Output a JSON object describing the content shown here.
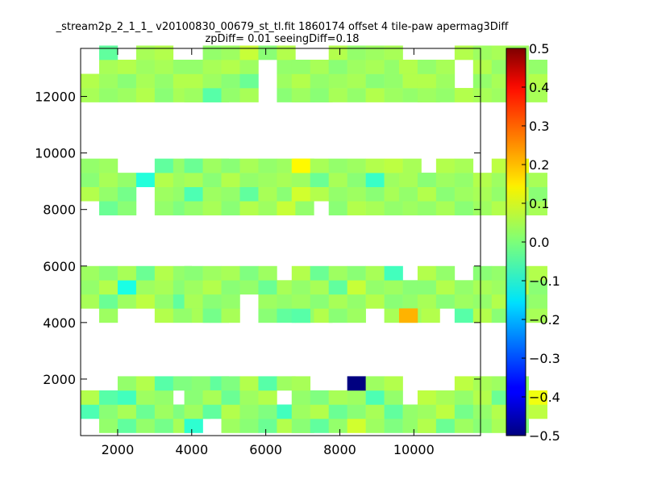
{
  "chart_data": {
    "type": "heatmap",
    "title_line1": "_stream2p_2_1_1_ v20100830_00679_st_tl.fit 1860174 offset 4 tile-paw apermag3Diff",
    "title_line2": "zpDiff= 0.01 seeingDiff=0.18",
    "xlim": [
      1000,
      11800
    ],
    "ylim": [
      0,
      13700
    ],
    "x_ticks": [
      {
        "value": 2000,
        "label": "2000"
      },
      {
        "value": 4000,
        "label": "4000"
      },
      {
        "value": 6000,
        "label": "6000"
      },
      {
        "value": 8000,
        "label": "8000"
      },
      {
        "value": 10000,
        "label": "10000"
      }
    ],
    "y_ticks": [
      {
        "value": 2000,
        "label": "2000"
      },
      {
        "value": 4000,
        "label": "4000"
      },
      {
        "value": 6000,
        "label": "6000"
      },
      {
        "value": 8000,
        "label": "8000"
      },
      {
        "value": 10000,
        "label": "10000"
      },
      {
        "value": 12000,
        "label": "12000"
      }
    ],
    "colorbar": {
      "colormap": "jet",
      "range": [
        -0.5,
        0.5
      ],
      "ticks": [
        {
          "value": 0.5,
          "label": "0.5"
        },
        {
          "value": 0.4,
          "label": "0.4"
        },
        {
          "value": 0.3,
          "label": "0.3"
        },
        {
          "value": 0.2,
          "label": "0.2"
        },
        {
          "value": 0.1,
          "label": "0.1"
        },
        {
          "value": 0.0,
          "label": "0.0"
        },
        {
          "value": -0.1,
          "label": "−0.1"
        },
        {
          "value": -0.2,
          "label": "−0.2"
        },
        {
          "value": -0.3,
          "label": "−0.3"
        },
        {
          "value": -0.4,
          "label": "−0.4"
        },
        {
          "value": -0.5,
          "label": "−0.5"
        }
      ]
    },
    "cell_size": 500,
    "blocks": [
      {
        "x0": 1000,
        "y0": 100,
        "cols": 8,
        "rows": 4,
        "values": [
          [
            0.03,
            0.02,
            -0.03,
            0.02,
            -0.01,
            0.04,
            0.05,
            0.02
          ],
          [
            -0.05,
            0.01,
            0.04,
            -0.02,
            0.03,
            0.0,
            0.02,
            0.06
          ],
          [
            0.05,
            -0.04,
            -0.06,
            0.03,
            0.02,
            -0.03,
            0.04,
            0.01
          ],
          [
            -0.02,
            0.03,
            0.02,
            0.05,
            -0.04,
            0.0,
            0.01,
            -0.03
          ]
        ]
      },
      {
        "x0": 3800,
        "y0": 100,
        "cols": 8,
        "rows": 4,
        "values": [
          [
            -0.08,
            0.02,
            0.03,
            0.01,
            -0.02,
            0.05,
            0.06,
            -0.01
          ],
          [
            0.03,
            -0.03,
            0.05,
            0.02,
            0.0,
            -0.06,
            0.02,
            0.04
          ],
          [
            0.01,
            0.04,
            -0.02,
            0.03,
            0.05,
            0.02,
            -0.03,
            0.01
          ],
          [
            0.02,
            -0.01,
            0.0,
            0.05,
            -0.04,
            0.03,
            0.01,
            0.02
          ]
        ]
      },
      {
        "x0": 6700,
        "y0": 100,
        "cols": 8,
        "rows": 4,
        "values": [
          [
            0.01,
            -0.03,
            0.02,
            0.08,
            0.03,
            0.0,
            0.02,
            -0.02
          ],
          [
            0.03,
            0.05,
            -0.02,
            0.01,
            0.04,
            -0.03,
            0.02,
            0.06
          ],
          [
            0.02,
            0.0,
            0.04,
            0.03,
            -0.05,
            0.02,
            0.01,
            0.03
          ],
          [
            0.04,
            0.02,
            -0.01,
            -0.5,
            0.03,
            0.05,
            -0.02,
            0.07
          ]
        ]
      },
      {
        "x0": 9600,
        "y0": 100,
        "cols": 8,
        "rows": 4,
        "values": [
          [
            0.02,
            0.05,
            -0.02,
            0.03,
            0.01,
            0.04,
            0.0,
            0.03
          ],
          [
            0.05,
            0.03,
            0.06,
            -0.01,
            0.02,
            0.05,
            0.03,
            0.06
          ],
          [
            0.03,
            0.06,
            0.04,
            0.02,
            0.05,
            -0.02,
            0.03,
            0.11
          ],
          [
            0.08,
            0.02,
            0.05,
            0.06,
            0.04,
            0.03,
            0.02,
            -0.04
          ]
        ]
      },
      {
        "x0": 1000,
        "y0": 4000,
        "cols": 8,
        "rows": 4,
        "values": [
          [
            0.07,
            0.03,
            -0.02,
            0.01,
            0.05,
            0.02,
            0.04,
            -0.01
          ],
          [
            0.04,
            -0.02,
            0.03,
            0.06,
            0.02,
            -0.03,
            0.01,
            0.0
          ],
          [
            0.02,
            0.05,
            -0.1,
            0.03,
            0.04,
            0.01,
            0.0,
            0.03
          ],
          [
            0.03,
            0.01,
            0.04,
            -0.02,
            0.05,
            0.02,
            0.03,
            0.01
          ]
        ]
      },
      {
        "x0": 3800,
        "y0": 4000,
        "cols": 8,
        "rows": 4,
        "values": [
          [
            0.02,
            -0.01,
            0.04,
            0.03,
            0.01,
            -0.03,
            0.02,
            0.05
          ],
          [
            0.04,
            0.01,
            0.02,
            -0.08,
            0.03,
            0.02,
            0.04,
            0.01
          ],
          [
            0.03,
            0.05,
            0.01,
            0.02,
            -0.02,
            0.04,
            0.03,
            0.02
          ],
          [
            0.01,
            0.03,
            0.04,
            0.0,
            0.03,
            0.05,
            0.02,
            0.04
          ]
        ]
      },
      {
        "x0": 6700,
        "y0": 4000,
        "cols": 8,
        "rows": 4,
        "values": [
          [
            -0.04,
            0.02,
            0.01,
            0.03,
            0.02,
            0.04,
            0.03,
            0.05
          ],
          [
            0.03,
            0.01,
            0.04,
            0.02,
            0.05,
            0.01,
            0.02,
            0.03
          ],
          [
            0.02,
            0.04,
            -0.03,
            0.07,
            0.02,
            0.03,
            0.01,
            0.04
          ],
          [
            0.05,
            -0.02,
            0.03,
            0.01,
            0.04,
            -0.06,
            0.02,
            0.06
          ]
        ]
      },
      {
        "x0": 9600,
        "y0": 4000,
        "cols": 8,
        "rows": 4,
        "values": [
          [
            0.2,
            0.03,
            0.02,
            -0.04,
            0.05,
            0.01,
            0.03,
            0.04
          ],
          [
            0.02,
            0.04,
            0.01,
            0.03,
            0.02,
            0.05,
            0.0,
            0.02
          ],
          [
            0.04,
            0.01,
            0.05,
            0.02,
            0.04,
            0.03,
            0.06,
            0.01
          ],
          [
            0.03,
            0.05,
            0.02,
            0.04,
            0.01,
            0.02,
            0.03,
            0.05
          ]
        ]
      },
      {
        "x0": 1000,
        "y0": 7800,
        "cols": 8,
        "rows": 4,
        "values": [
          [
            0.03,
            -0.02,
            0.01,
            0.04,
            0.02,
            0.0,
            0.03,
            0.01
          ],
          [
            0.05,
            0.02,
            -0.01,
            0.04,
            0.03,
            0.02,
            0.04,
            -0.02
          ],
          [
            0.01,
            0.04,
            0.02,
            -0.09,
            0.05,
            0.03,
            0.01,
            0.02
          ],
          [
            0.02,
            0.03,
            0.05,
            0.01,
            -0.03,
            0.02,
            0.04,
            0.03
          ]
        ]
      },
      {
        "x0": 3800,
        "y0": 7800,
        "cols": 8,
        "rows": 4,
        "values": [
          [
            0.02,
            0.04,
            0.01,
            0.05,
            0.03,
            0.07,
            0.02,
            0.04
          ],
          [
            -0.05,
            0.03,
            0.02,
            -0.03,
            0.04,
            0.01,
            0.03,
            0.02
          ],
          [
            0.04,
            0.01,
            0.05,
            0.02,
            0.03,
            0.04,
            0.01,
            0.05
          ],
          [
            -0.02,
            0.03,
            0.01,
            0.04,
            0.02,
            0.03,
            0.05,
            0.01
          ]
        ]
      },
      {
        "x0": 6700,
        "y0": 7800,
        "cols": 8,
        "rows": 4,
        "values": [
          [
            0.02,
            0.03,
            0.01,
            0.05,
            0.04,
            0.02,
            0.03,
            0.01
          ],
          [
            0.08,
            0.05,
            0.02,
            0.03,
            0.01,
            0.04,
            0.02,
            0.05
          ],
          [
            0.03,
            -0.02,
            0.04,
            0.01,
            -0.07,
            0.03,
            0.05,
            0.02
          ],
          [
            0.13,
            0.04,
            0.02,
            0.03,
            0.05,
            0.06,
            0.04,
            0.02
          ]
        ]
      },
      {
        "x0": 9600,
        "y0": 7800,
        "cols": 8,
        "rows": 4,
        "values": [
          [
            0.03,
            0.02,
            0.04,
            0.01,
            0.03,
            0.05,
            0.02,
            0.04
          ],
          [
            0.02,
            0.05,
            0.01,
            0.03,
            0.04,
            0.02,
            0.07,
            0.01
          ],
          [
            0.04,
            0.01,
            0.03,
            0.02,
            0.05,
            0.03,
            0.02,
            0.04
          ],
          [
            0.01,
            0.03,
            0.05,
            0.04,
            0.02,
            0.06,
            0.11,
            0.03
          ]
        ]
      },
      {
        "x0": 1000,
        "y0": 11800,
        "cols": 8,
        "rows": 4,
        "values": [
          [
            0.04,
            0.02,
            0.03,
            0.05,
            0.01,
            0.04,
            0.02,
            0.03
          ],
          [
            0.05,
            0.03,
            0.01,
            0.04,
            0.02,
            0.05,
            0.03,
            0.01
          ],
          [
            0.02,
            0.04,
            0.05,
            0.03,
            0.04,
            0.02,
            0.01,
            0.04
          ],
          [
            0.03,
            -0.03,
            0.02,
            0.04,
            0.05,
            0.03,
            0.02,
            0.01
          ]
        ]
      },
      {
        "x0": 3800,
        "y0": 11800,
        "cols": 8,
        "rows": 4,
        "values": [
          [
            0.03,
            -0.04,
            0.02,
            0.04,
            0.03,
            0.01,
            -0.05,
            0.02
          ],
          [
            0.05,
            0.03,
            0.01,
            -0.02,
            0.04,
            0.03,
            0.02,
            0.04
          ],
          [
            0.02,
            0.04,
            0.05,
            0.03,
            0.08,
            0.02,
            0.04,
            0.01
          ],
          [
            0.04,
            0.02,
            0.03,
            0.07,
            0.01,
            0.05,
            0.02,
            0.03
          ]
        ]
      },
      {
        "x0": 6700,
        "y0": 11800,
        "cols": 8,
        "rows": 4,
        "values": [
          [
            0.03,
            0.01,
            0.04,
            0.02,
            0.05,
            0.03,
            0.02,
            0.04
          ],
          [
            0.05,
            0.02,
            0.03,
            0.04,
            0.01,
            0.02,
            0.05,
            0.03
          ],
          [
            0.02,
            0.04,
            0.01,
            0.03,
            0.04,
            0.02,
            0.03,
            0.01
          ],
          [
            0.04,
            0.03,
            0.05,
            0.02,
            0.03,
            0.04,
            0.01,
            -0.02
          ]
        ]
      },
      {
        "x0": 9600,
        "y0": 11800,
        "cols": 8,
        "rows": 4,
        "values": [
          [
            0.04,
            0.03,
            0.02,
            0.05,
            0.04,
            0.03,
            0.02,
            0.04
          ],
          [
            0.02,
            0.05,
            0.03,
            0.07,
            0.02,
            0.04,
            0.03,
            0.05
          ],
          [
            0.05,
            0.02,
            0.04,
            0.03,
            0.05,
            0.02,
            0.04,
            0.02
          ],
          [
            0.03,
            0.04,
            0.02,
            0.05,
            0.03,
            0.04,
            0.03,
            0.05
          ]
        ]
      }
    ],
    "empty_cells": [
      "0-3-0",
      "0-3-1",
      "0-0-0",
      "0-2-5",
      "0-1-7",
      "0-0-6",
      "0-0-7",
      "1-0-1",
      "1-3-0",
      "1-3-1",
      "1-2-5",
      "1-3-6",
      "1-3-7",
      "1-0-7",
      "2-3-1",
      "2-3-2",
      "2-3-6",
      "2-3-7",
      "2-2-6",
      "2-2-7",
      "2-1-7",
      "3-3-0",
      "3-3-1",
      "3-3-2",
      "3-2-0",
      "3-1-0",
      "3-0-0",
      "3-0-7",
      "3-3-7",
      "4-0-0",
      "4-0-2",
      "4-0-3",
      "4-3-6",
      "4-3-7",
      "4-1-7",
      "4-2-7",
      "5-0-0",
      "5-1-3",
      "5-3-5",
      "5-3-6",
      "5-3-7",
      "5-2-7",
      "5-1-7",
      "5-0-3",
      "6-3-6",
      "6-3-7",
      "6-2-7",
      "6-1-7",
      "6-0-1",
      "6-0-4",
      "7-0-1",
      "7-0-2",
      "7-3-0",
      "7-2-0",
      "7-1-0",
      "7-3-3",
      "8-0-3",
      "8-1-3",
      "8-3-2",
      "8-3-3",
      "8-0-0",
      "9-0-7",
      "9-1-7",
      "9-3-7",
      "9-2-7",
      "10-0-0",
      "10-0-1",
      "10-0-7",
      "10-1-7",
      "10-3-7",
      "11-0-0",
      "11-3-0",
      "11-3-1",
      "11-3-4",
      "11-3-7",
      "12-3-0",
      "12-2-0",
      "12-3-2",
      "12-3-5",
      "12-3-6",
      "12-3-7",
      "12-1-7",
      "13-3-0",
      "13-0-4",
      "13-2-4",
      "13-1-4",
      "13-3-6",
      "13-3-7",
      "14-3-0",
      "14-3-1",
      "14-3-6",
      "14-3-7",
      "14-2-7",
      "15-0-0",
      "15-1-0",
      "15-3-0",
      "15-3-1",
      "15-3-2",
      "15-2-3",
      "15-1-3",
      "15-3-7"
    ]
  }
}
